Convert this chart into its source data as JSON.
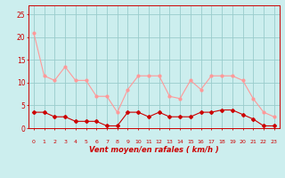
{
  "x": [
    0,
    1,
    2,
    3,
    4,
    5,
    6,
    7,
    8,
    9,
    10,
    11,
    12,
    13,
    14,
    15,
    16,
    17,
    18,
    19,
    20,
    21,
    22,
    23
  ],
  "wind_avg": [
    3.5,
    3.5,
    2.5,
    2.5,
    1.5,
    1.5,
    1.5,
    0.5,
    0.5,
    3.5,
    3.5,
    2.5,
    3.5,
    2.5,
    2.5,
    2.5,
    3.5,
    3.5,
    4.0,
    4.0,
    3.0,
    2.0,
    0.5,
    0.5
  ],
  "wind_gust": [
    21.0,
    11.5,
    10.5,
    13.5,
    10.5,
    10.5,
    7.0,
    7.0,
    3.5,
    8.5,
    11.5,
    11.5,
    11.5,
    7.0,
    6.5,
    10.5,
    8.5,
    11.5,
    11.5,
    11.5,
    10.5,
    6.5,
    3.5,
    2.5
  ],
  "color_avg": "#cc0000",
  "color_gust": "#ff9999",
  "bg_color": "#cceeee",
  "grid_color": "#99cccc",
  "xlabel": "Vent moyen/en rafales ( km/h )",
  "ytick_labels": [
    "0",
    "5",
    "10",
    "15",
    "20",
    "25"
  ],
  "ytick_vals": [
    0,
    5,
    10,
    15,
    20,
    25
  ],
  "xlim": [
    -0.5,
    23.5
  ],
  "ylim": [
    0,
    27
  ],
  "figsize": [
    3.2,
    2.0
  ],
  "dpi": 100
}
